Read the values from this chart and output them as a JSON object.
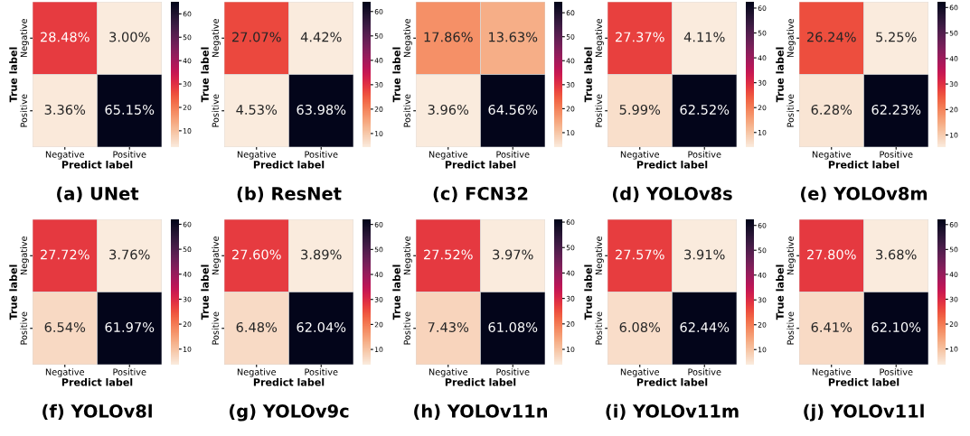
{
  "chart_data": [
    {
      "type": "heatmap",
      "title": "(a) UNet",
      "xlabel": "Predict label",
      "ylabel": "True label",
      "categories": [
        "Negative",
        "Positive"
      ],
      "y_categories": [
        "Negative",
        "Positive"
      ],
      "cells": [
        [
          28.48,
          3.0
        ],
        [
          3.36,
          65.15
        ]
      ],
      "cell_labels": [
        [
          "28.48%",
          "3.00%"
        ],
        [
          "3.36%",
          "65.15%"
        ]
      ],
      "clim": [
        3.0,
        65.15
      ],
      "cticks": [
        10,
        20,
        30,
        40,
        50,
        60
      ]
    },
    {
      "type": "heatmap",
      "title": "(b) ResNet",
      "xlabel": "Predict label",
      "ylabel": "True label",
      "categories": [
        "Negative",
        "Positive"
      ],
      "y_categories": [
        "Negative",
        "Positive"
      ],
      "cells": [
        [
          27.07,
          4.42
        ],
        [
          4.53,
          63.98
        ]
      ],
      "cell_labels": [
        [
          "27.07%",
          "4.42%"
        ],
        [
          "4.53%",
          "63.98%"
        ]
      ],
      "clim": [
        4.42,
        63.98
      ],
      "cticks": [
        10,
        20,
        30,
        40,
        50,
        60
      ]
    },
    {
      "type": "heatmap",
      "title": "(c) FCN32",
      "xlabel": "Predict label",
      "ylabel": "True label",
      "categories": [
        "Negative",
        "Positive"
      ],
      "y_categories": [
        "Negative",
        "Positive"
      ],
      "cells": [
        [
          17.86,
          13.63
        ],
        [
          3.96,
          64.56
        ]
      ],
      "cell_labels": [
        [
          "17.86%",
          "13.63%"
        ],
        [
          "3.96%",
          "64.56%"
        ]
      ],
      "clim": [
        3.96,
        64.56
      ],
      "cticks": [
        10,
        20,
        30,
        40,
        50,
        60
      ]
    },
    {
      "type": "heatmap",
      "title": "(d) YOLOv8s",
      "xlabel": "Predict label",
      "ylabel": "True label",
      "categories": [
        "Negative",
        "Positive"
      ],
      "y_categories": [
        "Negative",
        "Positive"
      ],
      "cells": [
        [
          27.37,
          4.11
        ],
        [
          5.99,
          62.52
        ]
      ],
      "cell_labels": [
        [
          "27.37%",
          "4.11%"
        ],
        [
          "5.99%",
          "62.52%"
        ]
      ],
      "clim": [
        4.11,
        62.52
      ],
      "cticks": [
        10,
        20,
        30,
        40,
        50,
        60
      ]
    },
    {
      "type": "heatmap",
      "title": "(e) YOLOv8m",
      "xlabel": "Predict label",
      "ylabel": "True label",
      "categories": [
        "Negative",
        "Positive"
      ],
      "y_categories": [
        "Negative",
        "Positive"
      ],
      "cells": [
        [
          26.24,
          5.25
        ],
        [
          6.28,
          62.23
        ]
      ],
      "cell_labels": [
        [
          "26.24%",
          "5.25%"
        ],
        [
          "6.28%",
          "62.23%"
        ]
      ],
      "clim": [
        5.25,
        62.23
      ],
      "cticks": [
        10,
        20,
        30,
        40,
        50,
        60
      ]
    },
    {
      "type": "heatmap",
      "title": "(f) YOLOv8l",
      "xlabel": "Predict label",
      "ylabel": "True label",
      "categories": [
        "Negative",
        "Positive"
      ],
      "y_categories": [
        "Negative",
        "Positive"
      ],
      "cells": [
        [
          27.72,
          3.76
        ],
        [
          6.54,
          61.97
        ]
      ],
      "cell_labels": [
        [
          "27.72%",
          "3.76%"
        ],
        [
          "6.54%",
          "61.97%"
        ]
      ],
      "clim": [
        3.76,
        61.97
      ],
      "cticks": [
        10,
        20,
        30,
        40,
        50,
        60
      ]
    },
    {
      "type": "heatmap",
      "title": "(g) YOLOv9c",
      "xlabel": "Predict label",
      "ylabel": "True label",
      "categories": [
        "Negative",
        "Positive"
      ],
      "y_categories": [
        "Negative",
        "Positive"
      ],
      "cells": [
        [
          27.6,
          3.89
        ],
        [
          6.48,
          62.04
        ]
      ],
      "cell_labels": [
        [
          "27.60%",
          "3.89%"
        ],
        [
          "6.48%",
          "62.04%"
        ]
      ],
      "clim": [
        3.89,
        62.04
      ],
      "cticks": [
        10,
        20,
        30,
        40,
        50,
        60
      ]
    },
    {
      "type": "heatmap",
      "title": "(h) YOLOv11n",
      "xlabel": "Predict label",
      "ylabel": "True label",
      "categories": [
        "Negative",
        "Positive"
      ],
      "y_categories": [
        "Negative",
        "Positive"
      ],
      "cells": [
        [
          27.52,
          3.97
        ],
        [
          7.43,
          61.08
        ]
      ],
      "cell_labels": [
        [
          "27.52%",
          "3.97%"
        ],
        [
          "7.43%",
          "61.08%"
        ]
      ],
      "clim": [
        3.97,
        61.08
      ],
      "cticks": [
        10,
        20,
        30,
        40,
        50,
        60
      ]
    },
    {
      "type": "heatmap",
      "title": "(i) YOLOv11m",
      "xlabel": "Predict label",
      "ylabel": "True label",
      "categories": [
        "Negative",
        "Positive"
      ],
      "y_categories": [
        "Negative",
        "Positive"
      ],
      "cells": [
        [
          27.57,
          3.91
        ],
        [
          6.08,
          62.44
        ]
      ],
      "cell_labels": [
        [
          "27.57%",
          "3.91%"
        ],
        [
          "6.08%",
          "62.44%"
        ]
      ],
      "clim": [
        3.91,
        62.44
      ],
      "cticks": [
        10,
        20,
        30,
        40,
        50,
        60
      ]
    },
    {
      "type": "heatmap",
      "title": "(j) YOLOv11l",
      "xlabel": "Predict label",
      "ylabel": "True label",
      "categories": [
        "Negative",
        "Positive"
      ],
      "y_categories": [
        "Negative",
        "Positive"
      ],
      "cells": [
        [
          27.8,
          3.68
        ],
        [
          6.41,
          62.1
        ]
      ],
      "cell_labels": [
        [
          "27.80%",
          "3.68%"
        ],
        [
          "6.41%",
          "62.10%"
        ]
      ],
      "clim": [
        3.68,
        62.1
      ],
      "cticks": [
        10,
        20,
        30,
        40,
        50,
        60
      ]
    }
  ]
}
